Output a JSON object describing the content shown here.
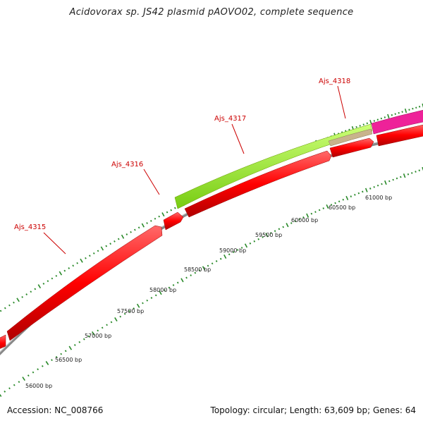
{
  "title": "Acidovorax sp. JS42 plasmid pAOVO02, complete sequence",
  "footer": {
    "accession": "Accession: NC_008766",
    "summary": "Topology: circular; Length: 63,609 bp; Genes: 64"
  },
  "gene_labels": [
    "Ajs_4315",
    "Ajs_4316",
    "Ajs_4317",
    "Ajs_4318"
  ],
  "bp_labels": [
    "56000 bp",
    "56500 bp",
    "57000 bp",
    "57500 bp",
    "58000 bp",
    "58500 bp",
    "59000 bp",
    "59500 bp",
    "60000 bp",
    "60500 bp",
    "61000 bp"
  ],
  "colors": {
    "forward_gene": "#ff0000",
    "highlight_gene": "#99ee22",
    "tan_gene": "#c8b48c",
    "pink_gene": "#ee2299",
    "backbone": "#888888",
    "tick": "#2a8a2a",
    "label": "#cc0000"
  }
}
